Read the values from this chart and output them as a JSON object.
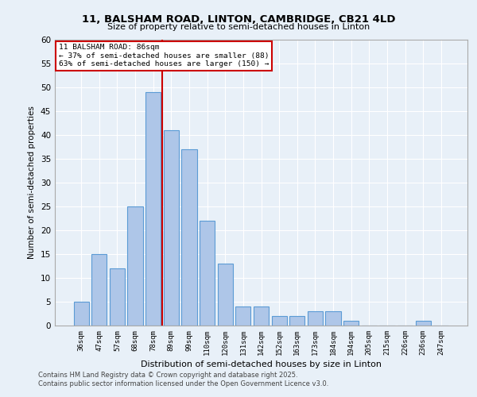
{
  "title1": "11, BALSHAM ROAD, LINTON, CAMBRIDGE, CB21 4LD",
  "title2": "Size of property relative to semi-detached houses in Linton",
  "xlabel": "Distribution of semi-detached houses by size in Linton",
  "ylabel": "Number of semi-detached properties",
  "footer1": "Contains HM Land Registry data © Crown copyright and database right 2025.",
  "footer2": "Contains public sector information licensed under the Open Government Licence v3.0.",
  "bar_labels": [
    "36sqm",
    "47sqm",
    "57sqm",
    "68sqm",
    "78sqm",
    "89sqm",
    "99sqm",
    "110sqm",
    "120sqm",
    "131sqm",
    "142sqm",
    "152sqm",
    "163sqm",
    "173sqm",
    "184sqm",
    "194sqm",
    "205sqm",
    "215sqm",
    "226sqm",
    "236sqm",
    "247sqm"
  ],
  "bar_values": [
    5,
    15,
    12,
    25,
    49,
    41,
    37,
    22,
    13,
    4,
    4,
    2,
    2,
    3,
    3,
    1,
    0,
    0,
    0,
    1,
    0
  ],
  "bar_color": "#aec6e8",
  "bar_edge_color": "#5b9bd5",
  "ylim": [
    0,
    60
  ],
  "yticks": [
    0,
    5,
    10,
    15,
    20,
    25,
    30,
    35,
    40,
    45,
    50,
    55,
    60
  ],
  "vline_x": 4.5,
  "vline_color": "#cc0000",
  "annotation_title": "11 BALSHAM ROAD: 86sqm",
  "annotation_line1": "← 37% of semi-detached houses are smaller (88)",
  "annotation_line2": "63% of semi-detached houses are larger (150) →",
  "annotation_box_color": "#ffffff",
  "annotation_box_edge": "#cc0000",
  "bg_color": "#e8f0f8",
  "grid_color": "#ffffff",
  "fig_width": 6.0,
  "fig_height": 5.0,
  "dpi": 100
}
